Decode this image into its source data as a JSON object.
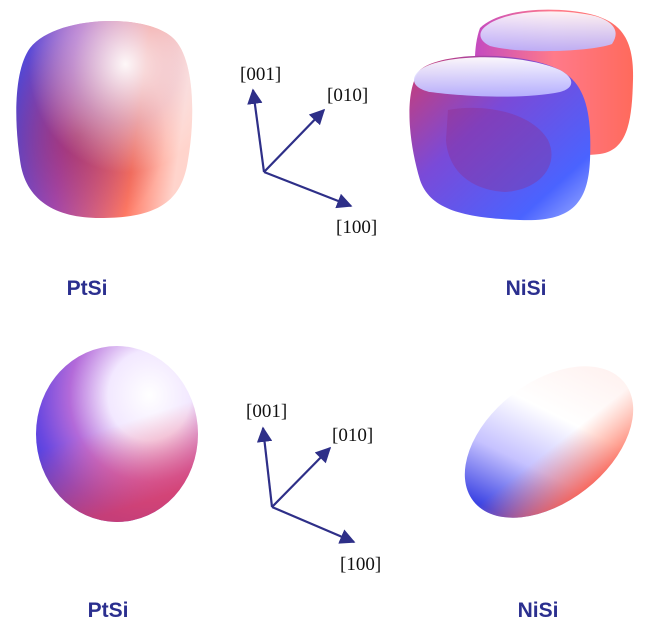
{
  "panels": [
    {
      "left_label": "PtSi",
      "right_label": "NiSi",
      "axes": {
        "z": "[001]",
        "y": "[010]",
        "x": "[100]"
      }
    },
    {
      "left_label": "PtSi",
      "right_label": "NiSi",
      "axes": {
        "z": "[001]",
        "y": "[010]",
        "x": "[100]"
      }
    }
  ],
  "colors": {
    "label_blue": "#2b2f8f",
    "axis_blue": "#2e2f88",
    "surface_blue": "#4a55e6",
    "surface_red": "#ff6b57",
    "surface_white": "#fff6fa"
  }
}
